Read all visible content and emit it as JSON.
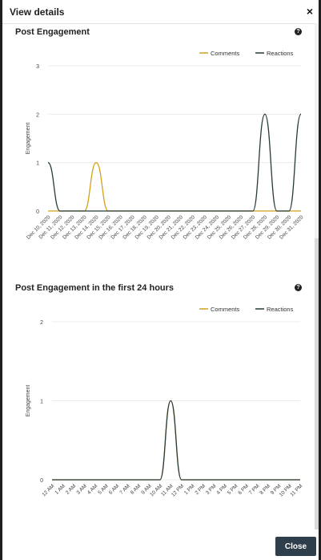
{
  "modal": {
    "title": "View details",
    "close_label": "Close",
    "close_icon": "×"
  },
  "colors": {
    "comments": "#d4a017",
    "reactions": "#263b3a"
  },
  "chart_data": [
    {
      "type": "line",
      "title": "Post Engagement",
      "ylabel": "Engagement",
      "ylim": [
        0,
        3
      ],
      "yticks": [
        0,
        1,
        2,
        3
      ],
      "categories": [
        "Dec 10, 2020",
        "Dec 11, 2020",
        "Dec 12, 2020",
        "Dec 13, 2020",
        "Dec 14, 2020",
        "Dec 15, 2020",
        "Dec 16, 2020",
        "Dec 17, 2020",
        "Dec 18, 2020",
        "Dec 19, 2020",
        "Dec 20, 2020",
        "Dec 21, 2020",
        "Dec 22, 2020",
        "Dec 23, 2020",
        "Dec 24, 2020",
        "Dec 25, 2020",
        "Dec 26, 2020",
        "Dec 27, 2020",
        "Dec 28, 2020",
        "Dec 29, 2020",
        "Dec 30, 2020",
        "Dec 31, 2020"
      ],
      "series": [
        {
          "name": "Comments",
          "values": [
            0,
            0,
            0,
            0,
            1,
            0,
            0,
            0,
            0,
            0,
            0,
            0,
            0,
            0,
            0,
            0,
            0,
            0,
            0,
            0,
            0,
            0
          ]
        },
        {
          "name": "Reactions",
          "values": [
            1,
            0,
            0,
            0,
            0,
            0,
            0,
            0,
            0,
            0,
            0,
            0,
            0,
            0,
            0,
            0,
            0,
            0,
            2,
            0,
            0,
            2
          ]
        }
      ],
      "legend": "top-right"
    },
    {
      "type": "line",
      "title": "Post Engagement in the first 24 hours",
      "ylabel": "Engagement",
      "ylim": [
        0,
        2
      ],
      "yticks": [
        0,
        1,
        2
      ],
      "categories": [
        "12 AM",
        "1 AM",
        "2 AM",
        "3 AM",
        "4 AM",
        "5 AM",
        "6 AM",
        "7 AM",
        "8 AM",
        "9 AM",
        "10 AM",
        "11 AM",
        "12 PM",
        "1 PM",
        "2 PM",
        "3 PM",
        "4 PM",
        "5 PM",
        "6 PM",
        "7 PM",
        "8 PM",
        "9 PM",
        "10 PM",
        "11 PM"
      ],
      "series": [
        {
          "name": "Comments",
          "values": [
            0,
            0,
            0,
            0,
            0,
            0,
            0,
            0,
            0,
            0,
            0,
            1,
            0,
            0,
            0,
            0,
            0,
            0,
            0,
            0,
            0,
            0,
            0,
            0
          ]
        },
        {
          "name": "Reactions",
          "values": [
            0,
            0,
            0,
            0,
            0,
            0,
            0,
            0,
            0,
            0,
            0,
            1,
            0,
            0,
            0,
            0,
            0,
            0,
            0,
            0,
            0,
            0,
            0,
            0
          ]
        }
      ],
      "legend": "top-right"
    }
  ]
}
